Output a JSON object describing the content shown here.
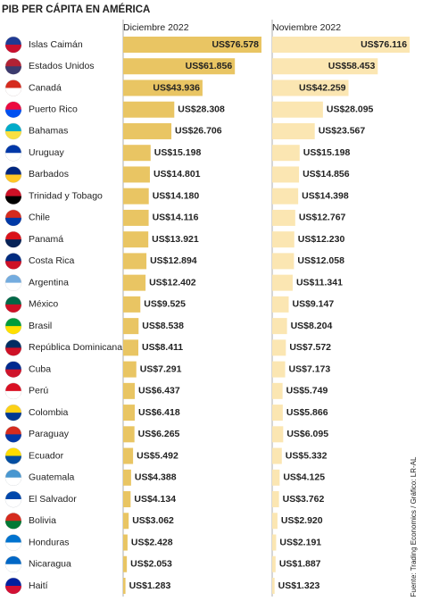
{
  "chart_data": {
    "type": "bar",
    "title": "PIB PER CÁPITA EN AMÉRICA",
    "source": "Fuente: Trading Economics / Gráfico: LR-AL",
    "categories": [
      "Islas Caimán",
      "Estados Unidos",
      "Canadá",
      "Puerto Rico",
      "Bahamas",
      "Uruguay",
      "Barbados",
      "Trinidad y Tobago",
      "Chile",
      "Panamá",
      "Costa Rica",
      "Argentina",
      "México",
      "Brasil",
      "República Dominicana",
      "Cuba",
      "Perú",
      "Colombia",
      "Paraguay",
      "Ecuador",
      "Guatemala",
      "El Salvador",
      "Bolivia",
      "Honduras",
      "Nicaragua",
      "Haití"
    ],
    "series": [
      {
        "name": "Diciembre 2022",
        "color": "#e9c563",
        "values": [
          76578,
          61856,
          43936,
          28308,
          26706,
          15198,
          14801,
          14180,
          14116,
          13921,
          12894,
          12402,
          9525,
          8538,
          8411,
          7291,
          6437,
          6418,
          6265,
          5492,
          4388,
          4134,
          3062,
          2428,
          2053,
          1283
        ],
        "value_labels": [
          "US$76.578",
          "US$61.856",
          "US$43.936",
          "US$28.308",
          "US$26.706",
          "US$15.198",
          "US$14.801",
          "US$14.180",
          "US$14.116",
          "US$13.921",
          "US$12.894",
          "US$12.402",
          "US$9.525",
          "US$8.538",
          "US$8.411",
          "US$7.291",
          "US$6.437",
          "US$6.418",
          "US$6.265",
          "US$5.492",
          "US$4.388",
          "US$4.134",
          "US$3.062",
          "US$2.428",
          "US$2.053",
          "US$1.283"
        ]
      },
      {
        "name": "Noviembre 2022",
        "color": "#fbe6b2",
        "values": [
          76116,
          58453,
          42259,
          28095,
          23567,
          15198,
          14856,
          14398,
          12767,
          12230,
          12058,
          11341,
          9147,
          8204,
          7572,
          7173,
          5749,
          5866,
          6095,
          5332,
          4125,
          3762,
          2920,
          2191,
          1887,
          1323
        ],
        "value_labels": [
          "US$76.116",
          "US$58.453",
          "US$42.259",
          "US$28.095",
          "US$23.567",
          "US$15.198",
          "US$14.856",
          "US$14.398",
          "US$12.767",
          "US$12.230",
          "US$12.058",
          "US$11.341",
          "US$9.147",
          "US$8.204",
          "US$7.572",
          "US$7.173",
          "US$5.749",
          "US$5.866",
          "US$6.095",
          "US$5.332",
          "US$4.125",
          "US$3.762",
          "US$2.920",
          "US$2.191",
          "US$1.887",
          "US$1.323"
        ]
      }
    ]
  }
}
